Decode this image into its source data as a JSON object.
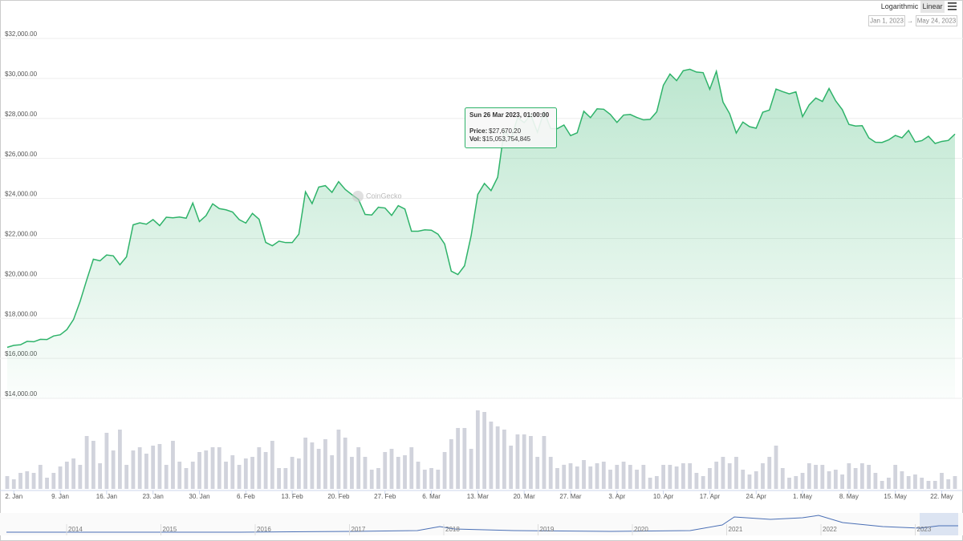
{
  "ui": {
    "scale_buttons": [
      "Logarithmic",
      "Linear"
    ],
    "active_scale": 1,
    "date_from": "Jan 1, 2023",
    "date_arrow": "→",
    "date_to": "May 24, 2023",
    "watermark": "CoinGecko",
    "tooltip": {
      "title": "Sun 26 Mar 2023, 01:00:00",
      "price_label": "Price:",
      "price": "$27,670.20",
      "vol_label": "Vol:",
      "vol": "$15,053,754,845",
      "index": 84
    },
    "navigator_years": [
      "2014",
      "2015",
      "2016",
      "2017",
      "2018",
      "2019",
      "2020",
      "2021",
      "2022",
      "2023"
    ]
  },
  "chart_data": {
    "type": "line",
    "log_scale": false,
    "grid": true,
    "area": true,
    "xlim": [
      "2023-01-01",
      "2023-05-24"
    ],
    "ylim": [
      14000,
      32000
    ],
    "yticks": [
      {
        "value": 14000,
        "label": "$14,000.00"
      },
      {
        "value": 16000,
        "label": "$16,000.00"
      },
      {
        "value": 18000,
        "label": "$18,000.00"
      },
      {
        "value": 20000,
        "label": "$20,000.00"
      },
      {
        "value": 22000,
        "label": "$22,000.00"
      },
      {
        "value": 24000,
        "label": "$24,000.00"
      },
      {
        "value": 26000,
        "label": "$26,000.00"
      },
      {
        "value": 28000,
        "label": "$28,000.00"
      },
      {
        "value": 30000,
        "label": "$30,000.00"
      },
      {
        "value": 32000,
        "label": "$32,000.00"
      }
    ],
    "y2lim": [
      0,
      55
    ],
    "xticks": [
      {
        "value": "2023-01-02",
        "label": "2. Jan"
      },
      {
        "value": "2023-01-09",
        "label": "9. Jan"
      },
      {
        "value": "2023-01-16",
        "label": "16. Jan"
      },
      {
        "value": "2023-01-23",
        "label": "23. Jan"
      },
      {
        "value": "2023-01-30",
        "label": "30. Jan"
      },
      {
        "value": "2023-02-06",
        "label": "6. Feb"
      },
      {
        "value": "2023-02-13",
        "label": "13. Feb"
      },
      {
        "value": "2023-02-20",
        "label": "20. Feb"
      },
      {
        "value": "2023-02-27",
        "label": "27. Feb"
      },
      {
        "value": "2023-03-06",
        "label": "6. Mar"
      },
      {
        "value": "2023-03-13",
        "label": "13. Mar"
      },
      {
        "value": "2023-03-20",
        "label": "20. Mar"
      },
      {
        "value": "2023-03-27",
        "label": "27. Mar"
      },
      {
        "value": "2023-04-03",
        "label": "3. Apr"
      },
      {
        "value": "2023-04-10",
        "label": "10. Apr"
      },
      {
        "value": "2023-04-17",
        "label": "17. Apr"
      },
      {
        "value": "2023-04-24",
        "label": "24. Apr"
      },
      {
        "value": "2023-05-01",
        "label": "1. May"
      },
      {
        "value": "2023-05-08",
        "label": "8. May"
      },
      {
        "value": "2023-05-15",
        "label": "15. May"
      },
      {
        "value": "2023-05-22",
        "label": "22. May"
      }
    ],
    "x": [
      "2023-01-01",
      "2023-01-02",
      "2023-01-03",
      "2023-01-04",
      "2023-01-05",
      "2023-01-06",
      "2023-01-07",
      "2023-01-08",
      "2023-01-09",
      "2023-01-10",
      "2023-01-11",
      "2023-01-12",
      "2023-01-13",
      "2023-01-14",
      "2023-01-15",
      "2023-01-16",
      "2023-01-17",
      "2023-01-18",
      "2023-01-19",
      "2023-01-20",
      "2023-01-21",
      "2023-01-22",
      "2023-01-23",
      "2023-01-24",
      "2023-01-25",
      "2023-01-26",
      "2023-01-27",
      "2023-01-28",
      "2023-01-29",
      "2023-01-30",
      "2023-01-31",
      "2023-02-01",
      "2023-02-02",
      "2023-02-03",
      "2023-02-04",
      "2023-02-05",
      "2023-02-06",
      "2023-02-07",
      "2023-02-08",
      "2023-02-09",
      "2023-02-10",
      "2023-02-11",
      "2023-02-12",
      "2023-02-13",
      "2023-02-14",
      "2023-02-15",
      "2023-02-16",
      "2023-02-17",
      "2023-02-18",
      "2023-02-19",
      "2023-02-20",
      "2023-02-21",
      "2023-02-22",
      "2023-02-23",
      "2023-02-24",
      "2023-02-25",
      "2023-02-26",
      "2023-02-27",
      "2023-02-28",
      "2023-03-01",
      "2023-03-02",
      "2023-03-03",
      "2023-03-04",
      "2023-03-05",
      "2023-03-06",
      "2023-03-07",
      "2023-03-08",
      "2023-03-09",
      "2023-03-10",
      "2023-03-11",
      "2023-03-12",
      "2023-03-13",
      "2023-03-14",
      "2023-03-15",
      "2023-03-16",
      "2023-03-17",
      "2023-03-18",
      "2023-03-19",
      "2023-03-20",
      "2023-03-21",
      "2023-03-22",
      "2023-03-23",
      "2023-03-24",
      "2023-03-25",
      "2023-03-26",
      "2023-03-27",
      "2023-03-28",
      "2023-03-29",
      "2023-03-30",
      "2023-03-31",
      "2023-04-01",
      "2023-04-02",
      "2023-04-03",
      "2023-04-04",
      "2023-04-05",
      "2023-04-06",
      "2023-04-07",
      "2023-04-08",
      "2023-04-09",
      "2023-04-10",
      "2023-04-11",
      "2023-04-12",
      "2023-04-13",
      "2023-04-14",
      "2023-04-15",
      "2023-04-16",
      "2023-04-17",
      "2023-04-18",
      "2023-04-19",
      "2023-04-20",
      "2023-04-21",
      "2023-04-22",
      "2023-04-23",
      "2023-04-24",
      "2023-04-25",
      "2023-04-26",
      "2023-04-27",
      "2023-04-28",
      "2023-04-29",
      "2023-04-30",
      "2023-05-01",
      "2023-05-02",
      "2023-05-03",
      "2023-05-04",
      "2023-05-05",
      "2023-05-06",
      "2023-05-07",
      "2023-05-08",
      "2023-05-09",
      "2023-05-10",
      "2023-05-11",
      "2023-05-12",
      "2023-05-13",
      "2023-05-14",
      "2023-05-15",
      "2023-05-16",
      "2023-05-17",
      "2023-05-18",
      "2023-05-19",
      "2023-05-20",
      "2023-05-21",
      "2023-05-22",
      "2023-05-23",
      "2023-05-24"
    ],
    "series": [
      {
        "color": "#2fb36a",
        "values": [
          16550,
          16650,
          16680,
          16850,
          16830,
          16950,
          16940,
          17120,
          17180,
          17440,
          17940,
          18850,
          19930,
          20960,
          20880,
          21170,
          21130,
          20680,
          21080,
          22680,
          22780,
          22710,
          22940,
          22640,
          23060,
          23030,
          23070,
          23010,
          23770,
          22840,
          23140,
          23730,
          23490,
          23430,
          23320,
          22940,
          22770,
          23250,
          22960,
          21800,
          21630,
          21860,
          21790,
          21790,
          22210,
          24330,
          23740,
          24570,
          24640,
          24300,
          24840,
          24450,
          24190,
          23950,
          23200,
          23170,
          23560,
          23520,
          23150,
          23640,
          23470,
          22360,
          22360,
          22430,
          22410,
          22210,
          21720,
          20360,
          20190,
          20630,
          22140,
          24200,
          24750,
          24390,
          25060,
          27450,
          26960,
          28040,
          27790,
          28180,
          27310,
          28350,
          27490,
          27490,
          27670.2,
          27140,
          27280,
          28360,
          28040,
          28480,
          28460,
          28200,
          27800,
          28170,
          28200,
          28050,
          27930,
          27950,
          28330,
          29660,
          30220,
          29890,
          30390,
          30460,
          30320,
          30290,
          29460,
          30360,
          28820,
          28240,
          27270,
          27820,
          27590,
          27510,
          28310,
          28420,
          29470,
          29340,
          29230,
          29330,
          28090,
          28680,
          29020,
          28850,
          29500,
          28880,
          28440,
          27700,
          27620,
          27640,
          27030,
          26810,
          26800,
          26930,
          27150,
          27030,
          27400,
          26820,
          26890,
          27110,
          26750,
          26850,
          26900,
          27220
        ]
      },
      {
        "type": "bar",
        "axis": "y2",
        "color": "#d1d3dc",
        "values": [
          8,
          6,
          10,
          11,
          10,
          15,
          7,
          10,
          14,
          17,
          19,
          15,
          33,
          30,
          16,
          35,
          24,
          37,
          15,
          24,
          26,
          22,
          27,
          28,
          15,
          30,
          17,
          13,
          17,
          23,
          24,
          26,
          26,
          17,
          21,
          15,
          19,
          20,
          26,
          23,
          30,
          13,
          13,
          20,
          19,
          32,
          29,
          25,
          31,
          21,
          37,
          32,
          20,
          26,
          20,
          12,
          13,
          23,
          25,
          20,
          21,
          26,
          17,
          12,
          13,
          12,
          23,
          31,
          38,
          38,
          25,
          49,
          48,
          42,
          39,
          37,
          27,
          34,
          34,
          33,
          20,
          33,
          20,
          13,
          15.05,
          16,
          14,
          18,
          14,
          16,
          17,
          12,
          15,
          17,
          15,
          12,
          15,
          7,
          8,
          15,
          15,
          14,
          16,
          16,
          10,
          8,
          13,
          17,
          20,
          16,
          20,
          12,
          9,
          11,
          16,
          20,
          27,
          13,
          7,
          8,
          10,
          16,
          15,
          15,
          11,
          12,
          9,
          16,
          13,
          16,
          15,
          10,
          5,
          7,
          15,
          11,
          8,
          9,
          7,
          5,
          5,
          10,
          6,
          8
        ]
      }
    ]
  }
}
